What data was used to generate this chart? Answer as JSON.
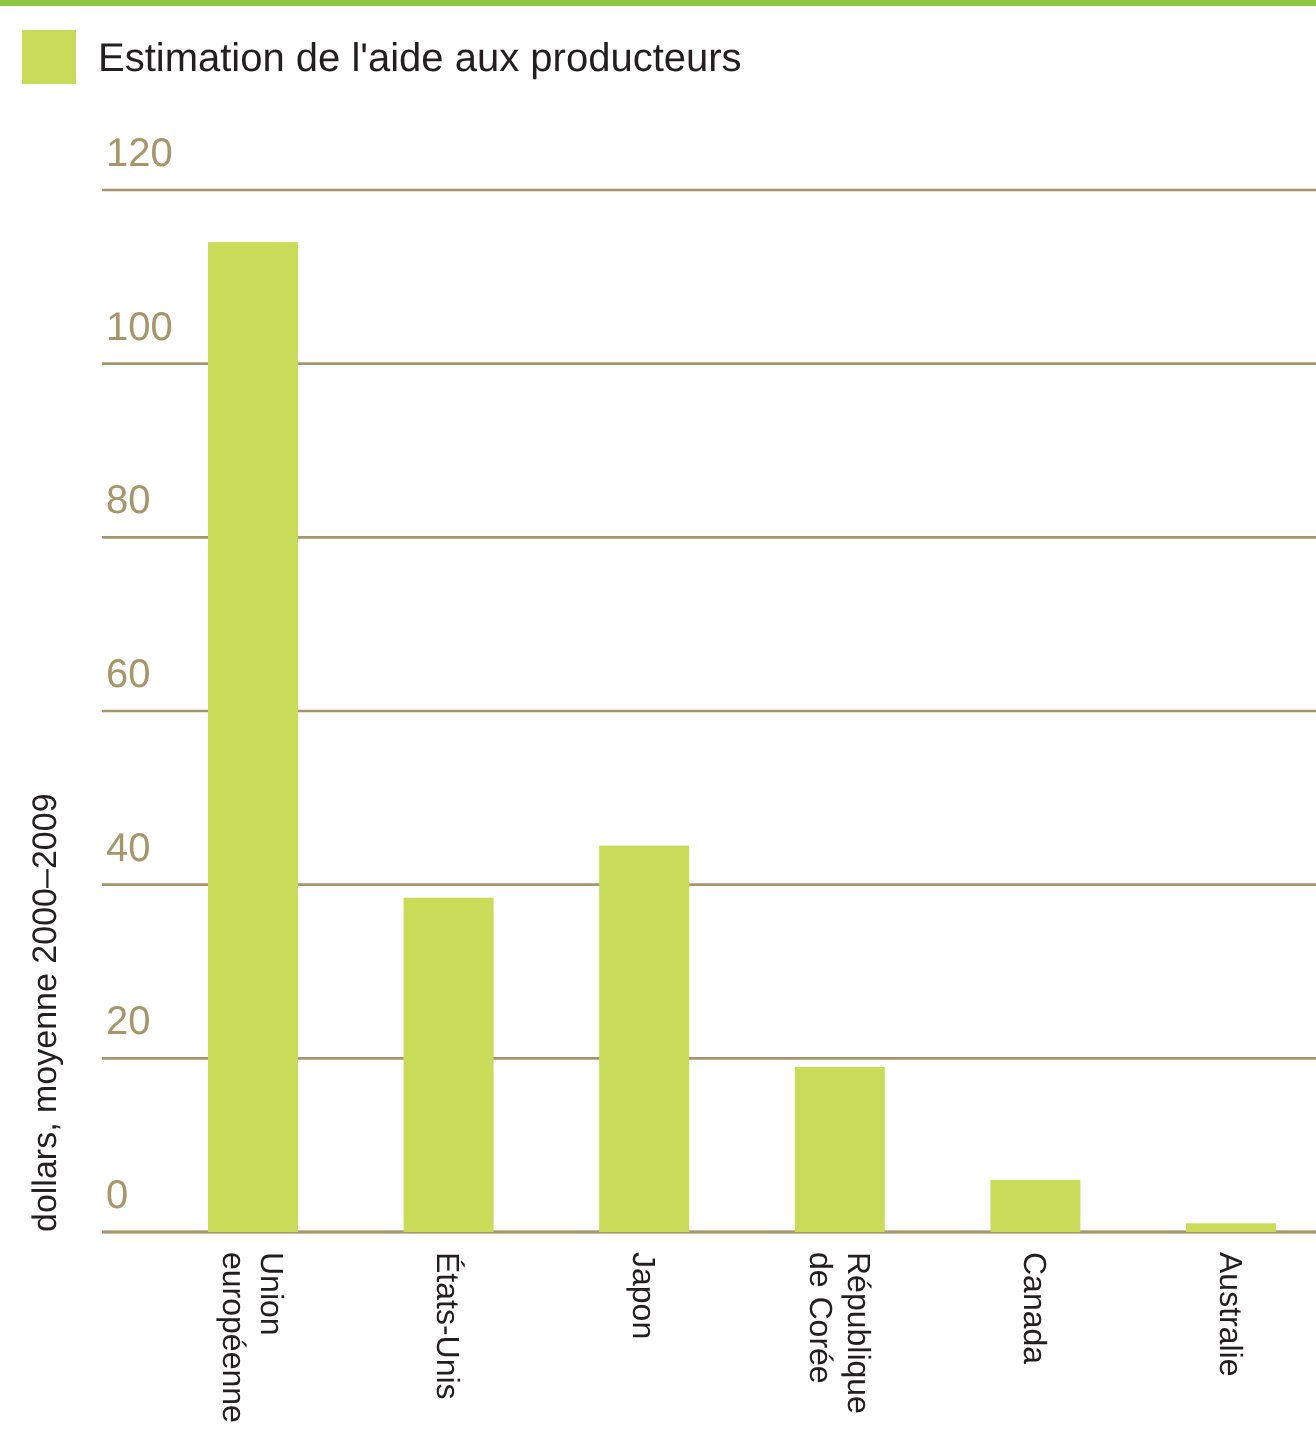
{
  "chart_data": {
    "type": "bar",
    "categories": [
      "Union européenne",
      "États-Unis",
      "Japon",
      "République de Corée",
      "Canada",
      "Australie"
    ],
    "series": [
      {
        "name": "Estimation de l'aide aux producteurs",
        "color": "#c8dc5a",
        "values": [
          114,
          38.5,
          44.5,
          19,
          6,
          1
        ]
      }
    ],
    "ylabel": "dollars, moyenne 2000–2009",
    "ylim": [
      0,
      120
    ],
    "yticks": [
      0,
      20,
      40,
      60,
      80,
      100,
      120
    ],
    "grid": "y",
    "legend": "top left"
  }
}
